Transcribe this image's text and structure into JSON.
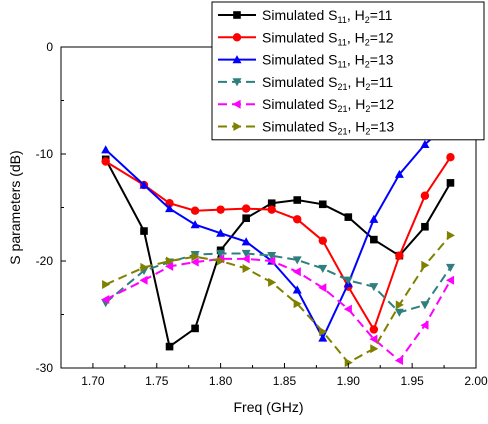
{
  "chart_data": {
    "type": "line",
    "title": "",
    "xlabel": "Freq (GHz)",
    "ylabel": "S parameters (dB)",
    "xlim": [
      1.675,
      2.0
    ],
    "ylim": [
      -30,
      0
    ],
    "xticks": [
      1.7,
      1.75,
      1.8,
      1.85,
      1.9,
      1.95,
      2.0
    ],
    "xtick_labels": [
      "1.70",
      "1.75",
      "1.80",
      "1.85",
      "1.90",
      "1.95",
      "2.00"
    ],
    "yticks": [
      0,
      -10,
      -20,
      -30
    ],
    "ytick_labels": [
      "0",
      "-10",
      "-20",
      "-30"
    ],
    "grid": false,
    "legend_position": "top-right",
    "x": [
      1.71,
      1.74,
      1.76,
      1.78,
      1.8,
      1.82,
      1.84,
      1.86,
      1.88,
      1.9,
      1.92,
      1.94,
      1.96,
      1.98
    ],
    "series": [
      {
        "name": "Simulated S11, H2=11",
        "legend": {
          "pre": "Simulated S",
          "sub1": "11",
          "mid": ", H",
          "sub2": "2",
          "post": "=11"
        },
        "color": "#000000",
        "dash": "solid",
        "marker": "square",
        "values": [
          -10.5,
          -17.2,
          -28.0,
          -26.3,
          -19.0,
          -16.0,
          -14.6,
          -14.3,
          -14.7,
          -15.9,
          -18.0,
          -19.5,
          -16.8,
          -12.7
        ]
      },
      {
        "name": "Simulated S11, H2=12",
        "legend": {
          "pre": "Simulated S",
          "sub1": "11",
          "mid": ", H",
          "sub2": "2",
          "post": "=12"
        },
        "color": "#ff0000",
        "dash": "solid",
        "marker": "circle",
        "values": [
          -10.7,
          -12.9,
          -14.6,
          -15.3,
          -15.2,
          -15.1,
          -15.2,
          -16.1,
          -18.1,
          -22.4,
          -26.4,
          -19.5,
          -13.9,
          -10.3
        ]
      },
      {
        "name": "Simulated S11, H2=13",
        "legend": {
          "pre": "Simulated S",
          "sub1": "11",
          "mid": ", H",
          "sub2": "2",
          "post": "=13"
        },
        "color": "#0000ff",
        "dash": "solid",
        "marker": "triangle-up",
        "values": [
          -9.6,
          -12.9,
          -15.1,
          -16.6,
          -17.4,
          -18.2,
          -20.0,
          -22.7,
          -27.2,
          -22.1,
          -16.1,
          -11.9,
          -9.1,
          -7.0
        ]
      },
      {
        "name": "Simulated S21, H2=11",
        "legend": {
          "pre": "Simulated S",
          "sub1": "21",
          "mid": ", H",
          "sub2": "2",
          "post": "=11"
        },
        "color": "#2f7f7f",
        "dash": "dashed",
        "marker": "triangle-down",
        "values": [
          -23.9,
          -20.9,
          -20.1,
          -19.4,
          -19.3,
          -19.3,
          -19.5,
          -19.9,
          -20.7,
          -21.8,
          -22.4,
          -24.8,
          -24.1,
          -20.6
        ]
      },
      {
        "name": "Simulated S21, H2=12",
        "legend": {
          "pre": "Simulated S",
          "sub1": "21",
          "mid": ", H",
          "sub2": "2",
          "post": "=12"
        },
        "color": "#ff00ff",
        "dash": "dashed",
        "marker": "triangle-left",
        "values": [
          -23.6,
          -21.8,
          -20.5,
          -20.1,
          -19.8,
          -19.8,
          -20.0,
          -21.0,
          -22.5,
          -24.5,
          -27.3,
          -29.3,
          -26.0,
          -21.8
        ]
      },
      {
        "name": "Simulated S21, H2=13",
        "legend": {
          "pre": "Simulated S",
          "sub1": "21",
          "mid": ", H",
          "sub2": "2",
          "post": "=13"
        },
        "color": "#808000",
        "dash": "dashed",
        "marker": "triangle-right",
        "values": [
          -22.2,
          -20.6,
          -20.0,
          -19.6,
          -20.0,
          -20.7,
          -22.0,
          -24.0,
          -26.6,
          -29.5,
          -28.2,
          -24.1,
          -20.4,
          -17.6
        ]
      }
    ]
  }
}
